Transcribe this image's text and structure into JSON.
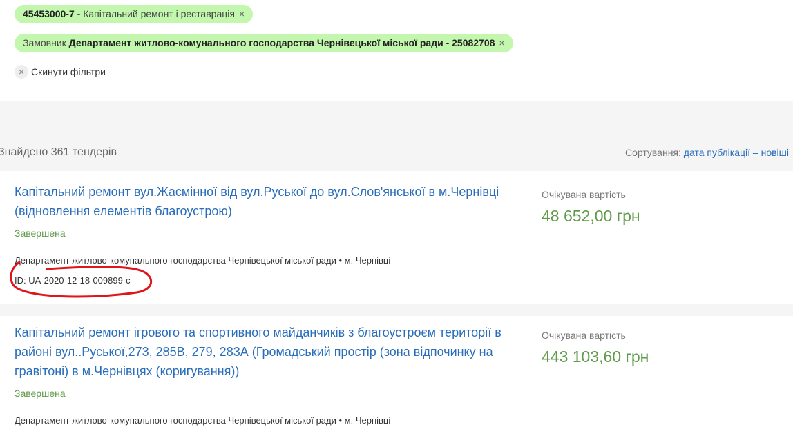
{
  "filters": [
    {
      "code": "45453000-7",
      "text": " - Капітальний ремонт і реставрація",
      "close": "×"
    },
    {
      "prefix": "Замовник ",
      "text": "Департамент житлово-комунального господарства Чернівецької міської ради - 25082708",
      "close": "×"
    }
  ],
  "reset": {
    "icon": "×",
    "label": "Скинути фільтри"
  },
  "results": {
    "found": "Знайдено 361 тендерів",
    "sort_label": "Сортування: ",
    "sort_value": "дата публікації – новіші"
  },
  "tenders": [
    {
      "title": "Капітальний ремонт вул.Жасмінної від вул.Руської до вул.Слов'янської в м.Чернівці (відновлення елементів благоустрою)",
      "status": "Завершена",
      "org": "Департамент житлово-комунального господарства Чернівецької міської ради • м. Чернівці",
      "id": "ID: UA-2020-12-18-009899-c",
      "price_label": "Очікувана вартість",
      "price": "48 652,00 грн"
    },
    {
      "title": "Капітальний ремонт ігрового та спортивного майданчиків з благоустроєм території в районі вул..Руської,273, 285В, 279, 283А (Громадський простір (зона відпочинку на гравітоні) в м.Чернівцях (коригування))",
      "status": "Завершена",
      "org": "Департамент житлово-комунального господарства Чернівецької міської ради • м. Чернівці",
      "price_label": "Очікувана вартість",
      "price": "443 103,60 грн"
    }
  ],
  "colors": {
    "chip": "#c3f7ad",
    "link": "#2a6ebb",
    "green": "#5f9b4b",
    "annotation": "#e0151b"
  }
}
